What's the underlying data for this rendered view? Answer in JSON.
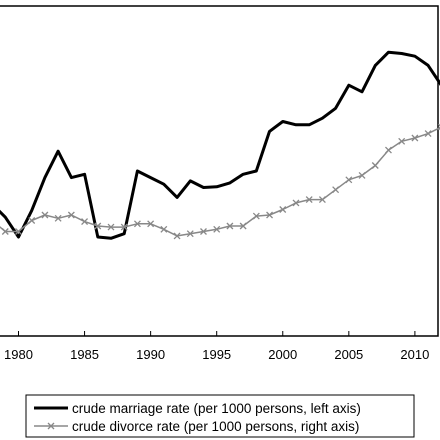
{
  "chart_data": {
    "type": "line",
    "x": [
      1978,
      1979,
      1980,
      1981,
      1982,
      1983,
      1984,
      1985,
      1986,
      1987,
      1988,
      1989,
      1990,
      1991,
      1992,
      1993,
      1994,
      1995,
      1996,
      1997,
      1998,
      1999,
      2000,
      2001,
      2002,
      2003,
      2004,
      2005,
      2006,
      2007,
      2008,
      2009,
      2010,
      2011,
      2012
    ],
    "x_ticks": [
      1980,
      1985,
      1990,
      1995,
      2000,
      2005,
      2010
    ],
    "x_tick_labels": [
      "1980",
      "1985",
      "1990",
      "1995",
      "2000",
      "2005",
      "2010"
    ],
    "xlim": [
      1978.6,
      2011.9
    ],
    "series": [
      {
        "name": "crude marriage rate (per 1000 persons, left axis)",
        "axis": "left",
        "color": "#000000",
        "marker": "none",
        "values": [
          6.5,
          6.3,
          6.0,
          6.4,
          6.9,
          7.3,
          6.9,
          6.95,
          6.0,
          5.98,
          6.05,
          7.0,
          6.9,
          6.8,
          6.6,
          6.85,
          6.75,
          6.76,
          6.82,
          6.95,
          7.0,
          7.6,
          7.75,
          7.7,
          7.7,
          7.8,
          7.95,
          8.3,
          8.2,
          8.6,
          8.8,
          8.78,
          8.74,
          8.6,
          8.3
        ]
      },
      {
        "name": "crude divorce rate (per 1000 persons, right axis)",
        "axis": "right",
        "color": "#888888",
        "marker": "x",
        "values": [
          1.05,
          0.95,
          0.95,
          1.05,
          1.1,
          1.07,
          1.1,
          1.04,
          1.0,
          0.99,
          0.99,
          1.02,
          1.02,
          0.97,
          0.91,
          0.93,
          0.95,
          0.97,
          1.0,
          1.0,
          1.09,
          1.1,
          1.15,
          1.21,
          1.24,
          1.24,
          1.33,
          1.42,
          1.46,
          1.55,
          1.69,
          1.77,
          1.8,
          1.84,
          1.9
        ]
      }
    ],
    "left_ylim": [
      4.5,
      9.5
    ],
    "right_ylim": [
      0.0,
      3.0
    ],
    "legend_position": "bottom",
    "grid": false
  }
}
